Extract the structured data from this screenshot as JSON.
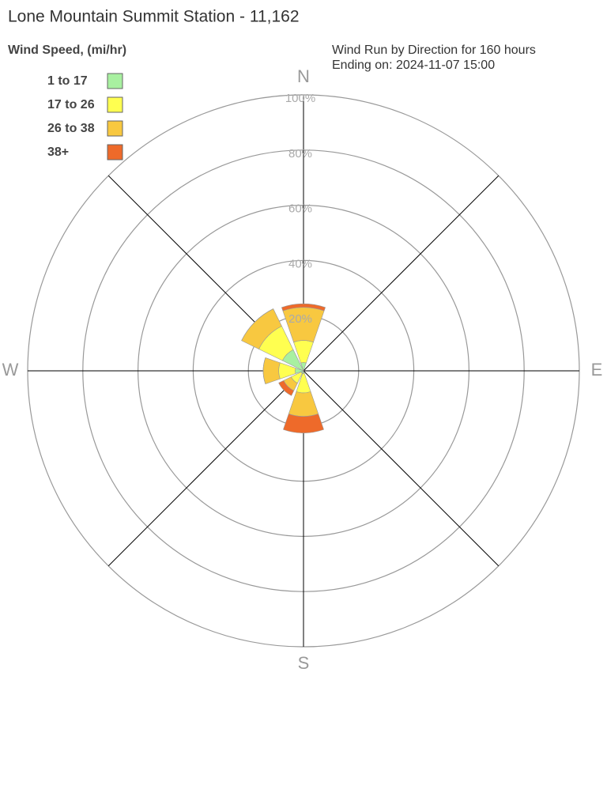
{
  "chart_data": {
    "type": "windrose",
    "title": "Lone Mountain Summit Station - 11,162",
    "legend_title": "Wind Speed, (mi/hr)",
    "subtitle": [
      "Wind Run by Direction for 160 hours",
      "Ending on: 2024-11-07 15:00"
    ],
    "categories": [
      "N",
      null,
      "E",
      null,
      "S",
      null,
      "W",
      null
    ],
    "series": [
      {
        "name": "1 to 17",
        "color": "#a8f0a0",
        "values": [
          3,
          0,
          0,
          0,
          1,
          1,
          3,
          8.5
        ]
      },
      {
        "name": "17 to 26",
        "color": "#ffff50",
        "values": [
          8,
          0,
          0,
          0,
          7,
          4,
          6,
          9.5
        ]
      },
      {
        "name": "26 to 38",
        "color": "#f8c840",
        "values": [
          12,
          0,
          0,
          0,
          8.5,
          3,
          5.6,
          7
        ]
      },
      {
        "name": "38+",
        "color": "#ee6a2a",
        "values": [
          1.3,
          0,
          0,
          0,
          6,
          2,
          0,
          0
        ]
      }
    ],
    "rlim": [
      0,
      100
    ],
    "rticks": [
      {
        "value": 20,
        "label": "20%"
      },
      {
        "value": 40,
        "label": "40%"
      },
      {
        "value": 60,
        "label": "60%"
      },
      {
        "value": 80,
        "label": "80%"
      },
      {
        "value": 100,
        "label": "100%"
      }
    ],
    "legend": "upper left"
  }
}
